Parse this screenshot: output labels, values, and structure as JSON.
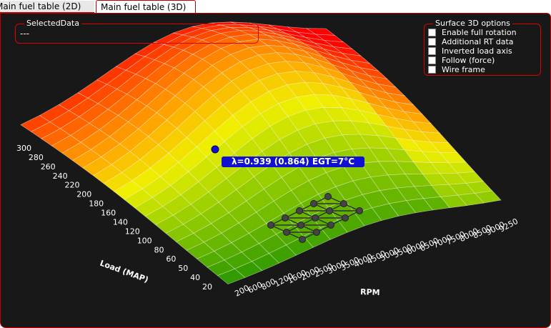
{
  "tabs": [
    {
      "label": "Main fuel table (2D)",
      "active": false
    },
    {
      "label": "Main fuel table (3D)",
      "active": true
    }
  ],
  "selected_data": {
    "title": "SelectedData",
    "value": "---"
  },
  "surface_options": {
    "title": "Surface 3D options",
    "items": [
      {
        "label": "Enable full rotation",
        "checked": false
      },
      {
        "label": "Additional RT data",
        "checked": false
      },
      {
        "label": "Inverted load axis",
        "checked": false
      },
      {
        "label": "Follow (force)",
        "checked": false
      },
      {
        "label": "Wire frame",
        "checked": false
      }
    ]
  },
  "tooltip": {
    "text": "λ=0.939 (0.864) EGT=7°C"
  },
  "axes": {
    "load_label": "Load (MAP)",
    "rpm_label": "RPM",
    "load_ticks": [
      "300",
      "280",
      "260",
      "240",
      "220",
      "200",
      "180",
      "160",
      "140",
      "120",
      "100",
      "80",
      "60",
      "50",
      "40",
      "20"
    ],
    "rpm_ticks": [
      "200",
      "600",
      "800",
      "1200",
      "1600",
      "2000",
      "2500",
      "3000",
      "3500",
      "4000",
      "4500",
      "5000",
      "5500",
      "6000",
      "6500",
      "7000",
      "7500",
      "8000",
      "8500",
      "9000",
      "9250"
    ]
  },
  "colors": {
    "background": "#181818",
    "accent": "#e00000",
    "cursor": "#1010d0",
    "grid_line": "#ffffff"
  }
}
